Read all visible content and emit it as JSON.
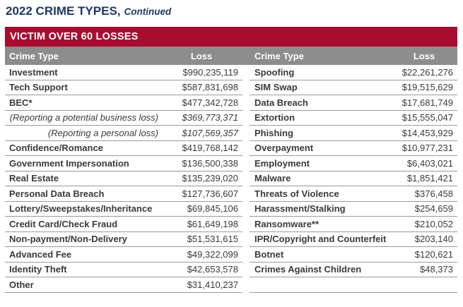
{
  "title": {
    "main": "2022 CRIME TYPES,",
    "suffix": "Continued"
  },
  "table": {
    "banner": "VICTIM OVER 60 LOSSES",
    "headers": {
      "left_type": "Crime Type",
      "left_loss": "Loss",
      "right_type": "Crime Type",
      "right_loss": "Loss"
    },
    "left_rows": [
      {
        "type": "Investment",
        "loss": "$990,235,119",
        "style": "normal"
      },
      {
        "type": "Tech Support",
        "loss": "$587,831,698",
        "style": "normal"
      },
      {
        "type": "BEC*",
        "loss": "$477,342,728",
        "style": "normal"
      },
      {
        "type": "(Reporting a potential business loss)",
        "loss": "$369,773,371",
        "style": "sub"
      },
      {
        "type": "(Reporting a personal loss)",
        "loss": "$107,569,357",
        "style": "sub"
      },
      {
        "type": "Confidence/Romance",
        "loss": "$419,768,142",
        "style": "normal"
      },
      {
        "type": "Government Impersonation",
        "loss": "$136,500,338",
        "style": "normal"
      },
      {
        "type": "Real Estate",
        "loss": "$135,239,020",
        "style": "normal"
      },
      {
        "type": "Personal Data Breach",
        "loss": "$127,736,607",
        "style": "normal"
      },
      {
        "type": "Lottery/Sweepstakes/Inheritance",
        "loss": "$69,845,106",
        "style": "normal"
      },
      {
        "type": "Credit Card/Check Fraud",
        "loss": "$61,649,198",
        "style": "normal"
      },
      {
        "type": "Non-payment/Non-Delivery",
        "loss": "$51,531,615",
        "style": "normal"
      },
      {
        "type": "Advanced Fee",
        "loss": "$49,322,099",
        "style": "normal"
      },
      {
        "type": "Identity Theft",
        "loss": "$42,653,578",
        "style": "normal"
      },
      {
        "type": "Other",
        "loss": "$31,410,237",
        "style": "normal"
      }
    ],
    "right_rows": [
      {
        "type": "Spoofing",
        "loss": "$22,261,276",
        "style": "normal"
      },
      {
        "type": "SIM Swap",
        "loss": "$19,515,629",
        "style": "normal"
      },
      {
        "type": "Data Breach",
        "loss": "$17,681,749",
        "style": "normal"
      },
      {
        "type": "Extortion",
        "loss": "$15,555,047",
        "style": "normal"
      },
      {
        "type": "Phishing",
        "loss": "$14,453,929",
        "style": "normal"
      },
      {
        "type": "Overpayment",
        "loss": "$10,977,231",
        "style": "normal"
      },
      {
        "type": "Employment",
        "loss": "$6,403,021",
        "style": "normal"
      },
      {
        "type": "Malware",
        "loss": "$1,851,421",
        "style": "normal"
      },
      {
        "type": "Threats of Violence",
        "loss": "$376,458",
        "style": "normal"
      },
      {
        "type": "Harassment/Stalking",
        "loss": "$254,659",
        "style": "normal"
      },
      {
        "type": "Ransomware**",
        "loss": "$210,052",
        "style": "normal"
      },
      {
        "type": "IPR/Copyright and Counterfeit",
        "loss": "$203,140",
        "style": "normal"
      },
      {
        "type": "Botnet",
        "loss": "$120,621",
        "style": "normal"
      },
      {
        "type": "Crimes Against Children",
        "loss": "$48,373",
        "style": "normal"
      },
      {
        "type": "",
        "loss": "",
        "style": "empty"
      }
    ],
    "colors": {
      "banner_bg": "#A80C2E",
      "header_bg": "#8D8D8D",
      "title_color": "#1F3864",
      "text_color": "#3A3A3A",
      "border_color": "#9A9A9A"
    }
  }
}
